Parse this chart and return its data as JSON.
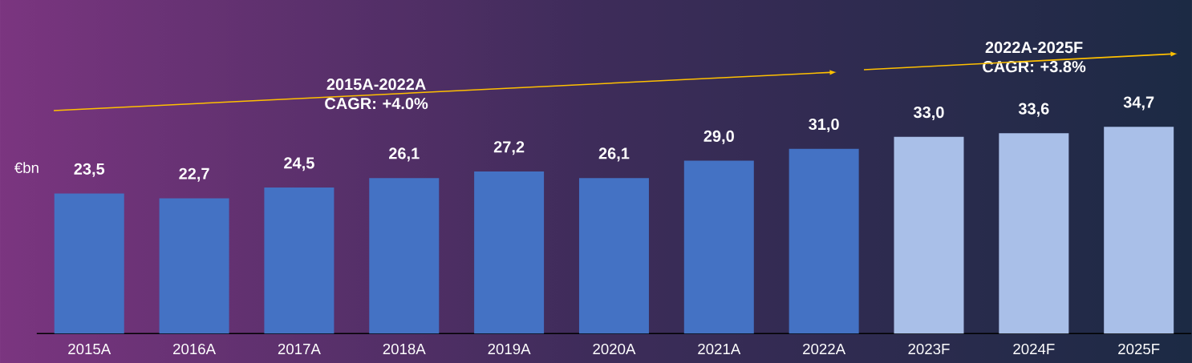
{
  "chart_data": {
    "type": "bar",
    "ylabel": "€bn",
    "categories": [
      "2015A",
      "2016A",
      "2017A",
      "2018A",
      "2019A",
      "2020A",
      "2021A",
      "2022A",
      "2023F",
      "2024F",
      "2025F"
    ],
    "values": [
      23.5,
      22.7,
      24.5,
      26.1,
      27.2,
      26.1,
      29.0,
      31.0,
      33.0,
      33.6,
      34.7
    ],
    "value_labels": [
      "23,5",
      "22,7",
      "24,5",
      "26,1",
      "27,2",
      "26,1",
      "29,0",
      "31,0",
      "33,0",
      "33,6",
      "34,7"
    ],
    "colors": [
      "#4472c4",
      "#4472c4",
      "#4472c4",
      "#4472c4",
      "#4472c4",
      "#4472c4",
      "#4472c4",
      "#4472c4",
      "#a9bfe8",
      "#a9bfe8",
      "#a9bfe8"
    ],
    "annotations": [
      "2015A-2022A CAGR: +4.0%",
      "2022A-2025F CAGR: +3.8%"
    ]
  }
}
